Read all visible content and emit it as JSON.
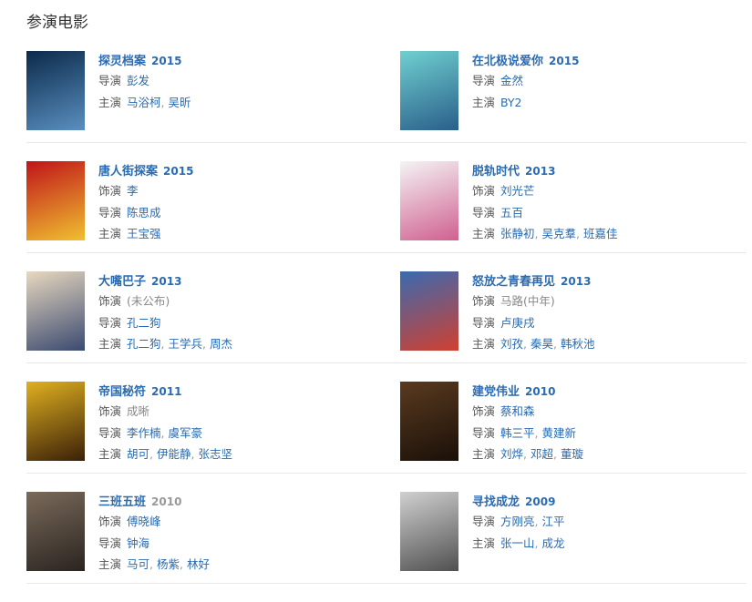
{
  "section_title": "参演电影",
  "movies": [
    {
      "title": "探灵档案",
      "year": "2015",
      "poster": [
        "#0b2a4a",
        "#5a8fc0"
      ],
      "roles": [
        {
          "label": "导演",
          "names": [
            "彭发"
          ]
        },
        {
          "label": "主演",
          "names": [
            "马浴柯",
            "吴昕"
          ]
        }
      ]
    },
    {
      "title": "在北极说爱你",
      "year": "2015",
      "poster": [
        "#6fd0d0",
        "#2a5e8a"
      ],
      "roles": [
        {
          "label": "导演",
          "names": [
            "金然"
          ]
        },
        {
          "label": "主演",
          "names": [
            "BY2"
          ]
        }
      ]
    },
    {
      "title": "唐人街探案",
      "year": "2015",
      "poster": [
        "#c0141a",
        "#f0c030"
      ],
      "roles": [
        {
          "label": "饰演",
          "names": [
            "李"
          ]
        },
        {
          "label": "导演",
          "names": [
            "陈思成"
          ]
        },
        {
          "label": "主演",
          "names": [
            "王宝强"
          ]
        }
      ]
    },
    {
      "title": "脱轨时代",
      "year": "2013",
      "poster": [
        "#f4f4f4",
        "#d06090"
      ],
      "roles": [
        {
          "label": "饰演",
          "names": [
            "刘光芒"
          ]
        },
        {
          "label": "导演",
          "names": [
            "五百"
          ]
        },
        {
          "label": "主演",
          "names": [
            "张静初",
            "吴克羣",
            "班嘉佳"
          ]
        }
      ]
    },
    {
      "title": "大嘴巴子",
      "year": "2013",
      "poster": [
        "#e8d8c0",
        "#3a4a70"
      ],
      "roles": [
        {
          "label": "饰演",
          "names": [
            "(未公布)"
          ],
          "muted": true
        },
        {
          "label": "导演",
          "names": [
            "孔二狗"
          ]
        },
        {
          "label": "主演",
          "names": [
            "孔二狗",
            "王学兵",
            "周杰"
          ]
        }
      ]
    },
    {
      "title": "怒放之青春再见",
      "year": "2013",
      "poster": [
        "#3a6ab0",
        "#d04030"
      ],
      "roles": [
        {
          "label": "饰演",
          "names": [
            "马路(中年)"
          ],
          "muted": true
        },
        {
          "label": "导演",
          "names": [
            "卢庚戌"
          ]
        },
        {
          "label": "主演",
          "names": [
            "刘孜",
            "秦昊",
            "韩秋池"
          ]
        }
      ]
    },
    {
      "title": "帝国秘符",
      "year": "2011",
      "poster": [
        "#e0b020",
        "#3a2008"
      ],
      "roles": [
        {
          "label": "饰演",
          "names": [
            "成晰"
          ],
          "muted": true
        },
        {
          "label": "导演",
          "names": [
            "李作楠",
            "虞军豪"
          ]
        },
        {
          "label": "主演",
          "names": [
            "胡可",
            "伊能静",
            "张志坚"
          ]
        }
      ]
    },
    {
      "title": "建党伟业",
      "year": "2010",
      "poster": [
        "#5a3a20",
        "#1a1008"
      ],
      "roles": [
        {
          "label": "饰演",
          "names": [
            "蔡和森"
          ]
        },
        {
          "label": "导演",
          "names": [
            "韩三平",
            "黄建新"
          ]
        },
        {
          "label": "主演",
          "names": [
            "刘烨",
            "邓超",
            "董璇"
          ]
        }
      ]
    },
    {
      "title": "三班五班",
      "year": "2010",
      "year_muted": true,
      "poster": [
        "#7a6a5a",
        "#2a2420"
      ],
      "roles": [
        {
          "label": "饰演",
          "names": [
            "傅晓峰"
          ]
        },
        {
          "label": "导演",
          "names": [
            "钟海"
          ]
        },
        {
          "label": "主演",
          "names": [
            "马可",
            "杨紫",
            "林好"
          ]
        }
      ]
    },
    {
      "title": "寻找成龙",
      "year": "2009",
      "poster": [
        "#d0d0d0",
        "#505050"
      ],
      "roles": [
        {
          "label": "导演",
          "names": [
            "方刚亮",
            "江平"
          ]
        },
        {
          "label": "主演",
          "names": [
            "张一山",
            "成龙"
          ]
        }
      ]
    }
  ]
}
